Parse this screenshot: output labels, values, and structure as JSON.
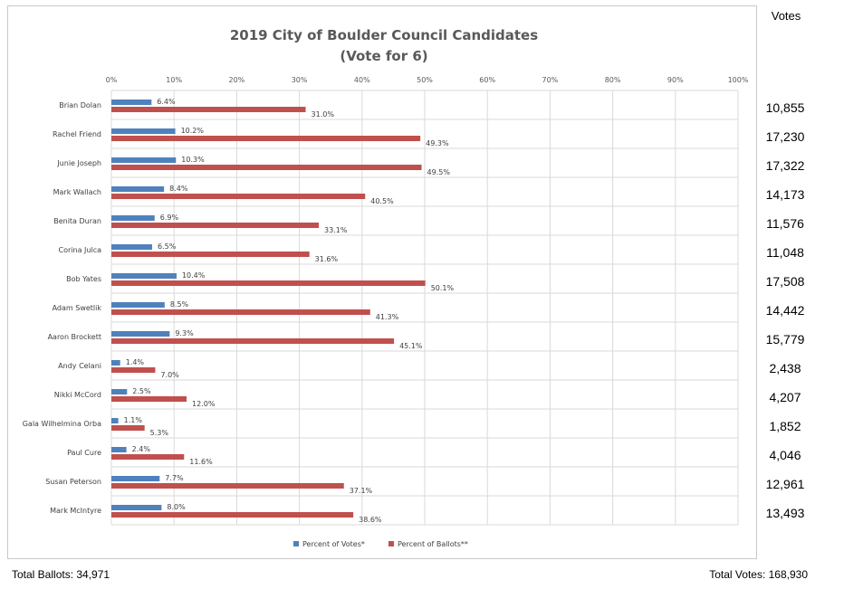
{
  "chart_data": {
    "type": "bar",
    "orientation": "horizontal",
    "title": "2019 City of Boulder Council Candidates",
    "subtitle": "(Vote for 6)",
    "xlim": [
      0,
      100
    ],
    "x_ticks": [
      "0%",
      "10%",
      "20%",
      "30%",
      "40%",
      "50%",
      "60%",
      "70%",
      "80%",
      "90%",
      "100%"
    ],
    "grid": true,
    "legend_position": "bottom",
    "categories": [
      "Brian Dolan",
      "Rachel Friend",
      "Junie Joseph",
      "Mark Wallach",
      "Benita Duran",
      "Corina Julca",
      "Bob Yates",
      "Adam Swetlik",
      "Aaron Brockett",
      "Andy Celani",
      "Nikki McCord",
      "Gala Wilhelmina Orba",
      "Paul Cure",
      "Susan Peterson",
      "Mark McIntyre"
    ],
    "series": [
      {
        "name": "Percent of Votes*",
        "color": "#4f81bd",
        "values": [
          6.4,
          10.2,
          10.3,
          8.4,
          6.9,
          6.5,
          10.4,
          8.5,
          9.3,
          1.4,
          2.5,
          1.1,
          2.4,
          7.7,
          8.0
        ],
        "labels": [
          "6.4%",
          "10.2%",
          "10.3%",
          "8.4%",
          "6.9%",
          "6.5%",
          "10.4%",
          "8.5%",
          "9.3%",
          "1.4%",
          "2.5%",
          "1.1%",
          "2.4%",
          "7.7%",
          "8.0%"
        ]
      },
      {
        "name": "Percent of Ballots**",
        "color": "#c0504d",
        "values": [
          31.0,
          49.3,
          49.5,
          40.5,
          33.1,
          31.6,
          50.1,
          41.3,
          45.1,
          7.0,
          12.0,
          5.3,
          11.6,
          37.1,
          38.6
        ],
        "labels": [
          "31.0%",
          "49.3%",
          "49.5%",
          "40.5%",
          "33.1%",
          "31.6%",
          "50.1%",
          "41.3%",
          "45.1%",
          "7.0%",
          "12.0%",
          "5.3%",
          "11.6%",
          "37.1%",
          "38.6%"
        ]
      }
    ]
  },
  "votes_column": {
    "header": "Votes",
    "values": [
      "10,855",
      "17,230",
      "17,322",
      "14,173",
      "11,576",
      "11,048",
      "17,508",
      "14,442",
      "15,779",
      "2,438",
      "4,207",
      "1,852",
      "4,046",
      "12,961",
      "13,493"
    ]
  },
  "footer": {
    "total_ballots": "Total Ballots: 34,971",
    "total_votes": "Total Votes: 168,930"
  }
}
